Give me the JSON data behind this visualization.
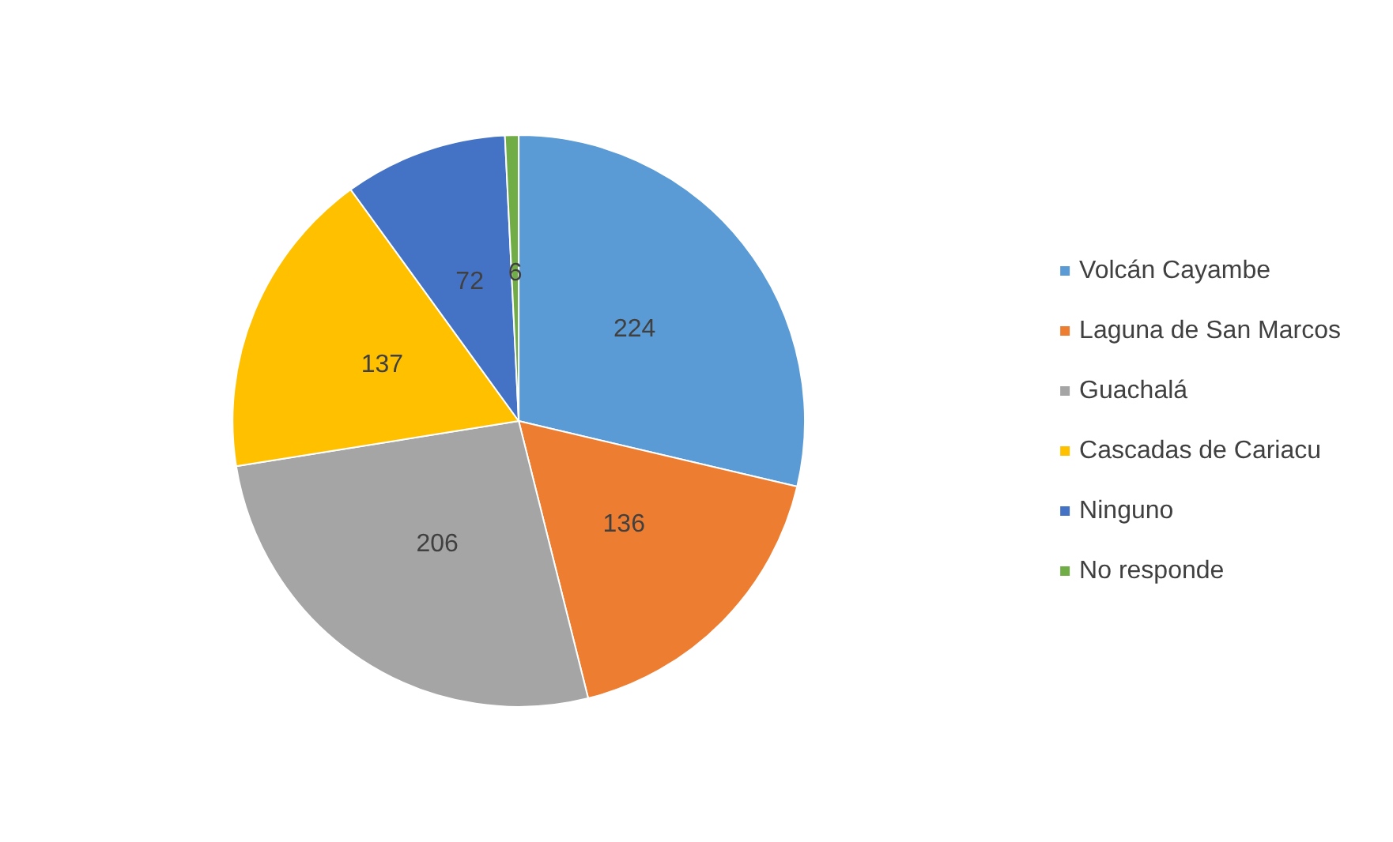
{
  "chart_data": {
    "type": "pie",
    "categories": [
      "Volcán Cayambe",
      "Laguna de San Marcos",
      "Guachalá",
      "Cascadas de Cariacu",
      "Ninguno",
      "No responde"
    ],
    "values": [
      224,
      136,
      206,
      137,
      72,
      6
    ],
    "colors": [
      "#5b9bd5",
      "#ed7d31",
      "#a5a5a5",
      "#ffc000",
      "#4472c4",
      "#70ad47"
    ],
    "data_labels": true,
    "legend": "right"
  }
}
